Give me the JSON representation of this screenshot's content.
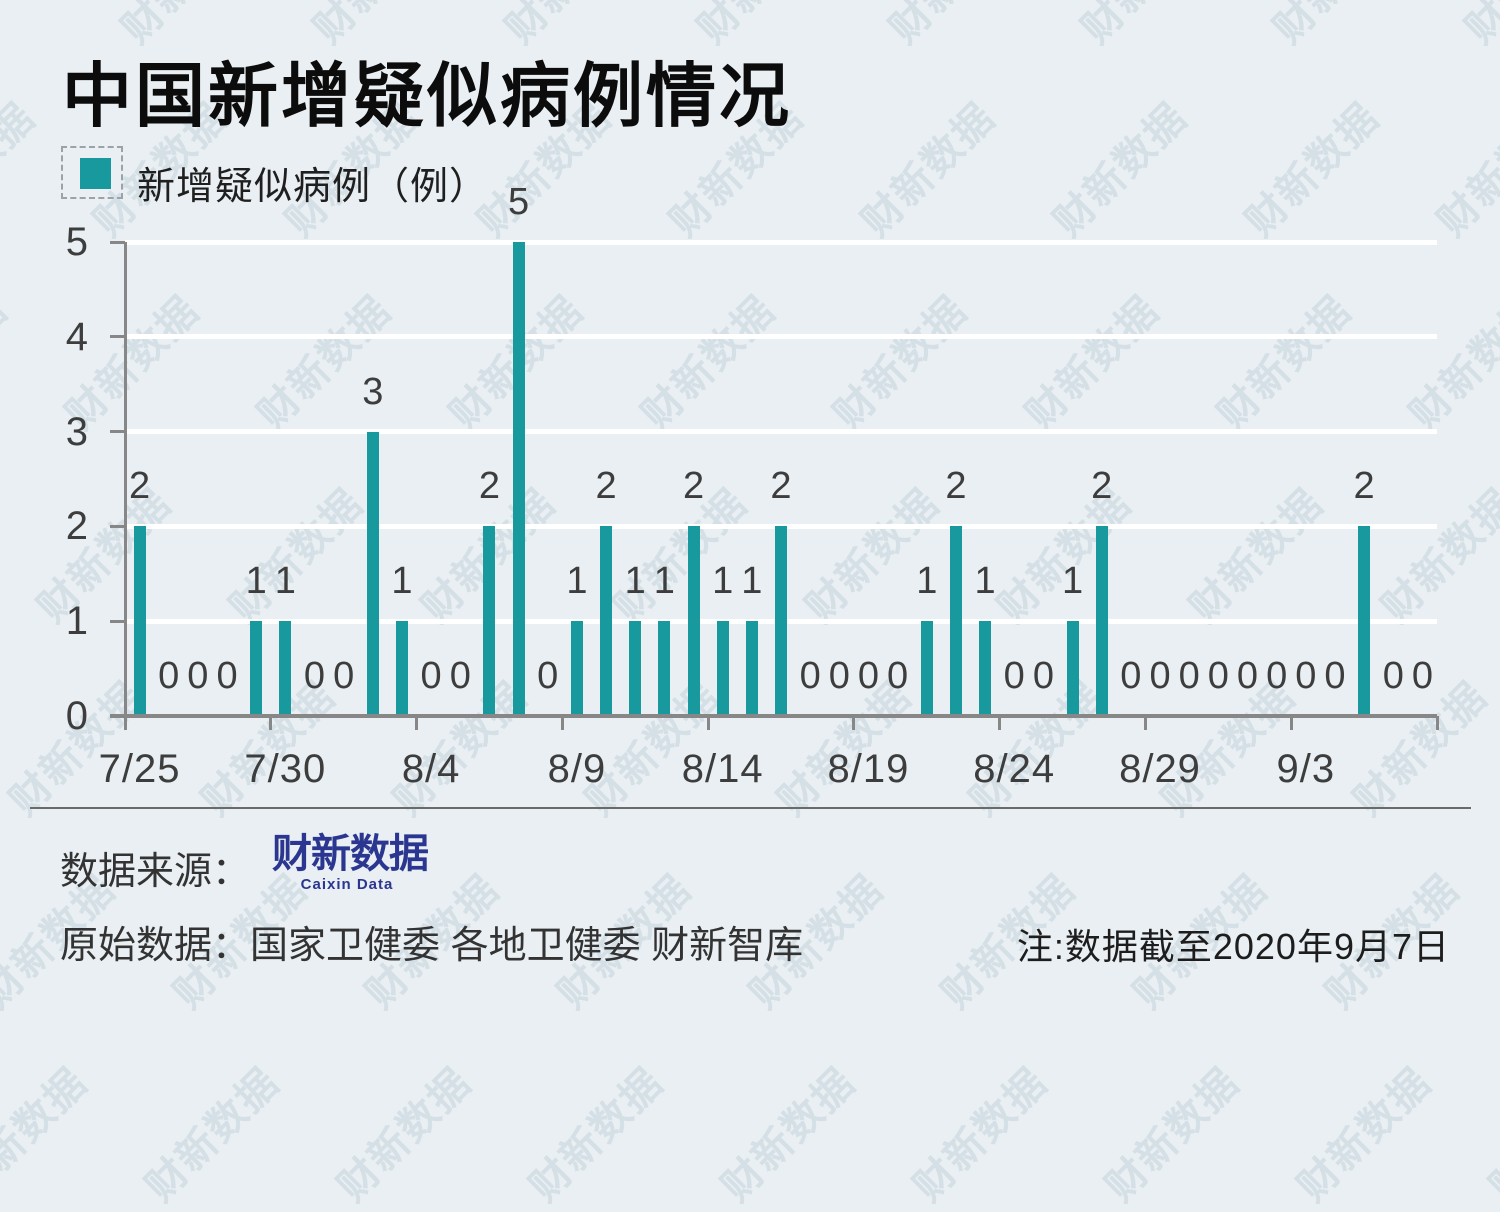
{
  "title": "中国新增疑似病例情况",
  "legend": {
    "label": "新增疑似病例（例）",
    "swatch_color": "#18999e"
  },
  "watermark": {
    "text": "财新数据"
  },
  "footer": {
    "source_label": "数据来源：",
    "logo_text": "财新数据",
    "logo_sub": "Caixin Data",
    "raw_label": "原始数据：",
    "raw_value": "国家卫健委 各地卫健委 财新智库",
    "note": "注:数据截至2020年9月7日"
  },
  "chart_data": {
    "type": "bar",
    "title": "中国新增疑似病例情况",
    "series_name": "新增疑似病例（例）",
    "categories": [
      "7/25",
      "7/26",
      "7/27",
      "7/28",
      "7/29",
      "7/30",
      "7/31",
      "8/1",
      "8/2",
      "8/3",
      "8/4",
      "8/5",
      "8/6",
      "8/7",
      "8/8",
      "8/9",
      "8/10",
      "8/11",
      "8/12",
      "8/13",
      "8/14",
      "8/15",
      "8/16",
      "8/17",
      "8/18",
      "8/19",
      "8/20",
      "8/21",
      "8/22",
      "8/23",
      "8/24",
      "8/25",
      "8/26",
      "8/27",
      "8/28",
      "8/29",
      "8/30",
      "8/31",
      "9/1",
      "9/2",
      "9/3",
      "9/4",
      "9/5",
      "9/6",
      "9/7"
    ],
    "values": [
      2,
      0,
      0,
      0,
      1,
      1,
      0,
      0,
      3,
      1,
      0,
      0,
      2,
      5,
      0,
      1,
      2,
      1,
      1,
      2,
      1,
      1,
      2,
      0,
      0,
      0,
      0,
      1,
      2,
      1,
      0,
      0,
      1,
      2,
      0,
      0,
      0,
      0,
      0,
      0,
      0,
      0,
      2,
      0,
      0
    ],
    "x_tick_labels": [
      "7/25",
      "7/30",
      "8/4",
      "8/9",
      "8/14",
      "8/19",
      "8/24",
      "8/29",
      "9/3"
    ],
    "y_ticks": [
      0,
      1,
      2,
      3,
      4,
      5
    ],
    "ylim": [
      0,
      5
    ],
    "bar_color": "#18999e",
    "value_labels_shown": true,
    "grid": "horizontal-white-lines",
    "legend_position": "top-left"
  }
}
